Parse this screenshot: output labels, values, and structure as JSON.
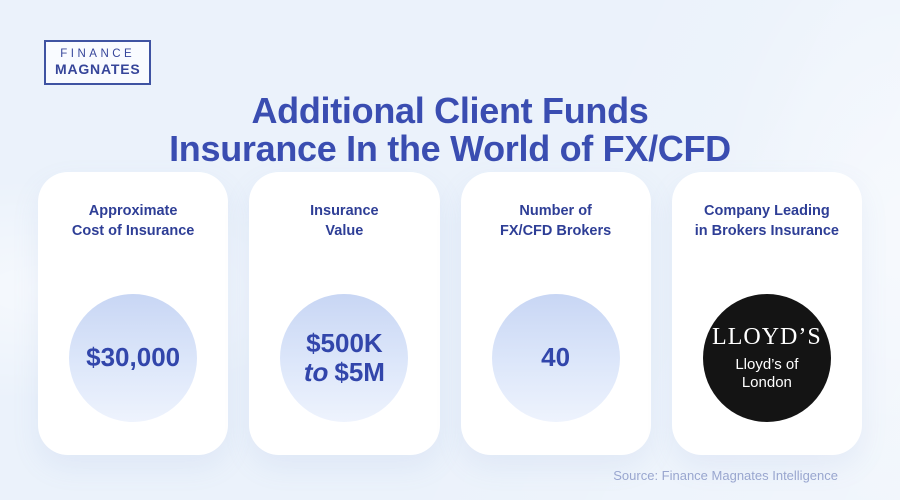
{
  "colors": {
    "background": "#ebf2fb",
    "title": "#3a4db1",
    "label": "#2e3e96",
    "value": "#3246ab",
    "logo": "#36459a",
    "card_background": "#ffffff",
    "circle_gradient_top": "#c8d6f4",
    "circle_gradient_bottom": "#eef3fd",
    "lloyds_circle": "#141414",
    "source_text": "#99a6cf"
  },
  "logo": {
    "line1": "FINANCE",
    "line2": "MAGNATES"
  },
  "title": {
    "line1": "Additional Client Funds",
    "line2": "Insurance In the World of FX/CFD"
  },
  "cards": [
    {
      "label_line1": "Approximate",
      "label_line2": "Cost of Insurance",
      "value": "$30,000"
    },
    {
      "label_line1": "Insurance",
      "label_line2": "Value",
      "value_line1": "$500K",
      "value_to": "to",
      "value_line2": "$5M"
    },
    {
      "label_line1": "Number of",
      "label_line2": "FX/CFD Brokers",
      "value": "40"
    },
    {
      "label_line1": "Company Leading",
      "label_line2": "in Brokers Insurance",
      "badge_title": "LLOYD’S",
      "badge_sub_line1": "Lloyd’s of",
      "badge_sub_line2": "London"
    }
  ],
  "source": "Source: Finance Magnates Intelligence",
  "chart_data": {
    "type": "table",
    "title": "Additional Client Funds Insurance In the World of FX/CFD",
    "categories": [
      "Approximate Cost of Insurance",
      "Insurance Value",
      "Number of FX/CFD Brokers",
      "Company Leading in Brokers Insurance"
    ],
    "values": [
      "$30,000",
      "$500K to $5M",
      "40",
      "Lloyd’s of London"
    ],
    "source": "Source: Finance Magnates Intelligence"
  }
}
